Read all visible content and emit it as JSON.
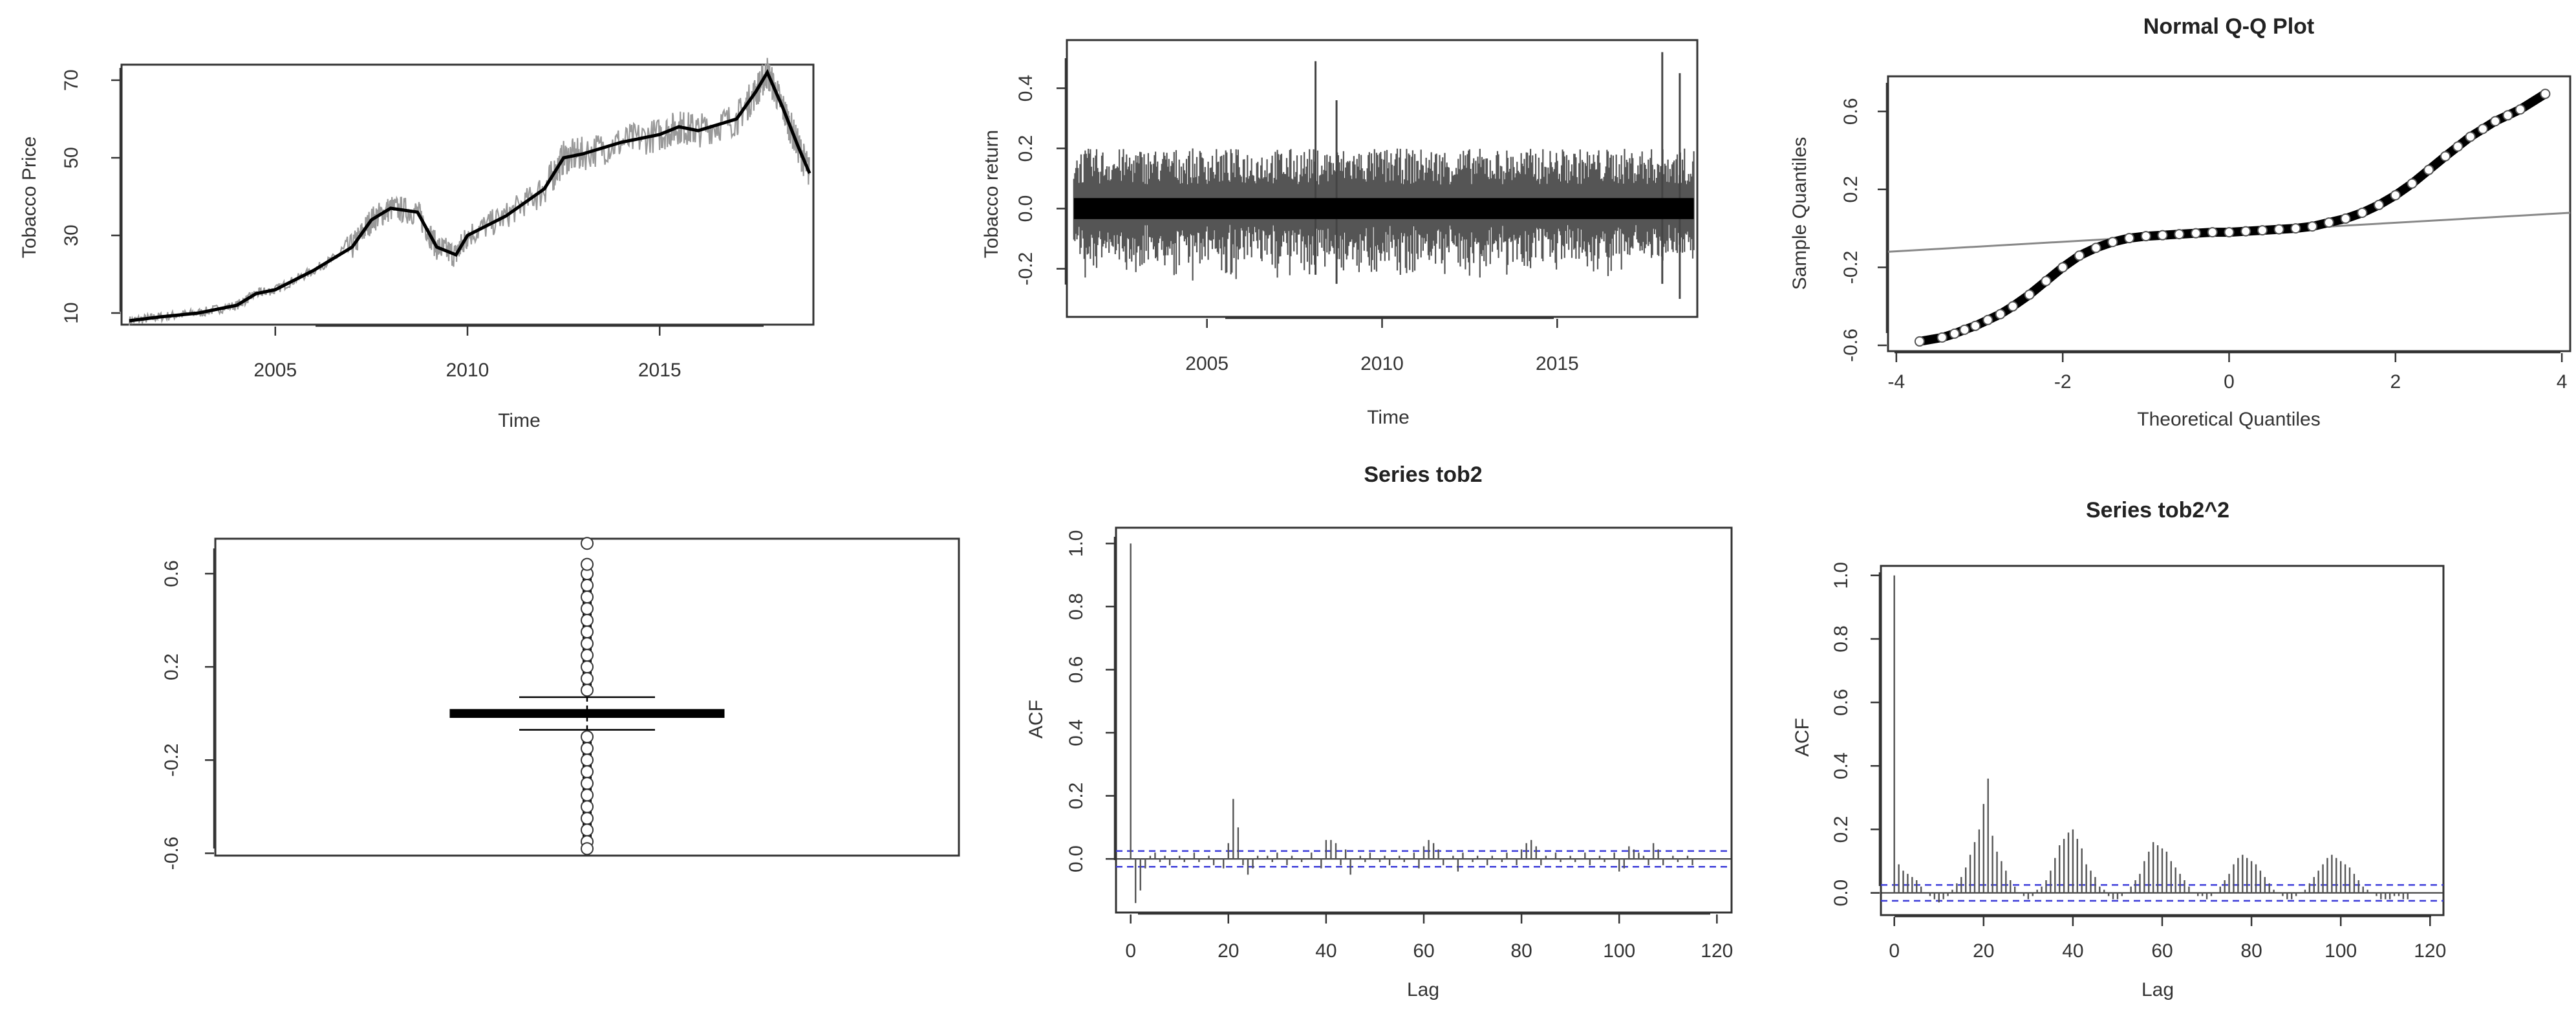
{
  "chart_data": [
    {
      "type": "line",
      "title": "",
      "xlabel": "Time",
      "ylabel": "Tobacco Price",
      "xlim": [
        2001,
        2019
      ],
      "ylim": [
        7,
        74
      ],
      "x_ticks": [
        2005,
        2010,
        2015
      ],
      "y_ticks": [
        10,
        30,
        50,
        70
      ],
      "series": [
        {
          "x": [
            2001.2,
            2002.0,
            2003.0,
            2004.0,
            2004.5,
            2005.0,
            2006.0,
            2007.0,
            2007.5,
            2008.0,
            2008.7,
            2009.2,
            2009.7,
            2010.0,
            2011.0,
            2012.0,
            2012.5,
            2013.0,
            2014.0,
            2015.0,
            2015.5,
            2016.0,
            2017.0,
            2017.5,
            2017.8,
            2018.2,
            2018.6,
            2018.9
          ],
          "values": [
            8,
            9,
            10,
            12,
            15,
            16,
            21,
            27,
            34,
            37,
            36,
            27,
            25,
            30,
            35,
            42,
            50,
            51,
            54,
            56,
            58,
            57,
            60,
            67,
            72,
            63,
            53,
            46
          ]
        }
      ]
    },
    {
      "type": "line",
      "title": "",
      "xlabel": "Time",
      "ylabel": "Tobacco return",
      "xlim": [
        2001,
        2019
      ],
      "ylim": [
        -0.36,
        0.56
      ],
      "x_ticks": [
        2005,
        2010,
        2015
      ],
      "y_ticks": [
        -0.2,
        0.0,
        0.2,
        0.4
      ],
      "y_tick_labels": [
        "-0.2",
        "0.0",
        "0.2",
        "0.4"
      ],
      "spikes": [
        {
          "x": 2008.1,
          "high": 0.49,
          "low": -0.22
        },
        {
          "x": 2008.7,
          "high": 0.36,
          "low": -0.25
        },
        {
          "x": 2018.0,
          "high": 0.52,
          "low": -0.25
        },
        {
          "x": 2018.5,
          "high": 0.45,
          "low": -0.3
        }
      ],
      "noise_amplitude": 0.2
    },
    {
      "type": "scatter",
      "title": "Normal Q-Q Plot",
      "xlabel": "Theoretical Quantiles",
      "ylabel": "Sample Quantiles",
      "xlim": [
        -4.1,
        4.1
      ],
      "ylim": [
        -0.63,
        0.78
      ],
      "x_ticks": [
        -4,
        -2,
        0,
        2,
        4
      ],
      "y_ticks": [
        -0.6,
        -0.2,
        0.2,
        0.6
      ],
      "y_tick_labels": [
        "-0.6",
        "-0.2",
        "0.2",
        "0.6"
      ],
      "reference_line": {
        "x": [
          -4.1,
          4.1
        ],
        "y": [
          -0.12,
          0.08
        ]
      },
      "points": {
        "x": [
          -3.72,
          -3.45,
          -3.3,
          -3.18,
          -3.05,
          -2.9,
          -2.75,
          -2.6,
          -2.4,
          -2.2,
          -2.0,
          -1.8,
          -1.6,
          -1.4,
          -1.2,
          -1.0,
          -0.8,
          -0.6,
          -0.4,
          -0.2,
          0.0,
          0.2,
          0.4,
          0.6,
          0.8,
          1.0,
          1.2,
          1.4,
          1.6,
          1.8,
          2.0,
          2.2,
          2.4,
          2.6,
          2.75,
          2.9,
          3.05,
          3.2,
          3.35,
          3.5,
          3.8
        ],
        "y": [
          -0.58,
          -0.56,
          -0.54,
          -0.52,
          -0.5,
          -0.47,
          -0.44,
          -0.4,
          -0.34,
          -0.27,
          -0.2,
          -0.14,
          -0.1,
          -0.07,
          -0.05,
          -0.04,
          -0.035,
          -0.03,
          -0.025,
          -0.02,
          -0.02,
          -0.015,
          -0.01,
          -0.005,
          0.0,
          0.01,
          0.03,
          0.05,
          0.08,
          0.12,
          0.17,
          0.23,
          0.3,
          0.37,
          0.42,
          0.47,
          0.51,
          0.55,
          0.58,
          0.61,
          0.69
        ]
      }
    },
    {
      "type": "box",
      "title": "",
      "ylim": [
        -0.61,
        0.75
      ],
      "y_ticks": [
        -0.6,
        -0.2,
        0.2,
        0.6
      ],
      "y_tick_labels": [
        "-0.6",
        "-0.2",
        "0.2",
        "0.6"
      ],
      "median": 0.0,
      "q1": -0.012,
      "q3": 0.012,
      "whisker_low": -0.07,
      "whisker_high": 0.07,
      "outliers_high": [
        0.1,
        0.15,
        0.2,
        0.25,
        0.3,
        0.35,
        0.4,
        0.45,
        0.5,
        0.55,
        0.6,
        0.64,
        0.73
      ],
      "outliers_low": [
        -0.1,
        -0.15,
        -0.2,
        -0.25,
        -0.3,
        -0.35,
        -0.4,
        -0.45,
        -0.5,
        -0.55,
        -0.58
      ]
    },
    {
      "type": "bar",
      "title": "Series  tob2",
      "xlabel": "Lag",
      "ylabel": "ACF",
      "xlim": [
        -3,
        123
      ],
      "ylim": [
        -0.17,
        1.05
      ],
      "x_ticks": [
        0,
        20,
        40,
        60,
        80,
        100,
        120
      ],
      "y_ticks": [
        0.0,
        0.2,
        0.4,
        0.6,
        0.8,
        1.0
      ],
      "y_tick_labels": [
        "0.0",
        "0.2",
        "0.4",
        "0.6",
        "0.8",
        "1.0"
      ],
      "conf_band": 0.025,
      "x": [
        0,
        1,
        2,
        3,
        4,
        5,
        6,
        7,
        8,
        9,
        10,
        11,
        12,
        13,
        14,
        15,
        16,
        17,
        18,
        19,
        20,
        21,
        22,
        23,
        24,
        25,
        26,
        27,
        28,
        29,
        30,
        31,
        32,
        33,
        34,
        35,
        36,
        37,
        38,
        39,
        40,
        41,
        42,
        43,
        44,
        45,
        46,
        47,
        48,
        49,
        50,
        51,
        52,
        53,
        54,
        55,
        56,
        57,
        58,
        59,
        60,
        61,
        62,
        63,
        64,
        65,
        66,
        67,
        68,
        69,
        70,
        71,
        72,
        73,
        74,
        75,
        76,
        77,
        78,
        79,
        80,
        81,
        82,
        83,
        84,
        85,
        86,
        87,
        88,
        89,
        90,
        91,
        92,
        93,
        94,
        95,
        96,
        97,
        98,
        99,
        100,
        101,
        102,
        103,
        104,
        105,
        106,
        107,
        108,
        109,
        110,
        111,
        112,
        113,
        114,
        115
      ],
      "values": [
        1.0,
        -0.14,
        -0.1,
        -0.03,
        0.01,
        0.02,
        -0.01,
        0.01,
        -0.02,
        0.0,
        0.01,
        -0.01,
        0.0,
        0.02,
        -0.01,
        0.0,
        0.01,
        -0.02,
        0.0,
        -0.03,
        0.05,
        0.19,
        0.1,
        -0.02,
        -0.05,
        -0.03,
        0.01,
        0.0,
        0.01,
        -0.01,
        0.02,
        0.0,
        -0.02,
        0.01,
        0.0,
        -0.01,
        0.0,
        0.02,
        0.0,
        -0.03,
        0.06,
        0.06,
        0.05,
        -0.02,
        0.03,
        -0.05,
        0.0,
        0.01,
        -0.01,
        0.02,
        0.0,
        -0.01,
        0.01,
        -0.02,
        0.0,
        0.01,
        -0.01,
        0.0,
        0.02,
        -0.03,
        0.04,
        0.06,
        0.05,
        0.03,
        -0.02,
        0.0,
        0.01,
        -0.04,
        0.02,
        0.0,
        -0.01,
        0.01,
        0.0,
        -0.02,
        0.01,
        0.0,
        -0.01,
        0.02,
        0.0,
        -0.02,
        0.03,
        0.05,
        0.06,
        0.04,
        -0.02,
        0.01,
        0.0,
        0.02,
        -0.01,
        0.0,
        0.01,
        -0.01,
        0.0,
        0.02,
        -0.02,
        0.0,
        0.01,
        -0.01,
        0.0,
        0.02,
        -0.04,
        -0.03,
        0.04,
        0.03,
        0.02,
        0.01,
        -0.02,
        0.05,
        0.03,
        -0.02,
        0.0,
        0.01,
        -0.01,
        0.0,
        0.01,
        -0.02
      ]
    },
    {
      "type": "bar",
      "title": "Series  tob2^2",
      "xlabel": "Lag",
      "ylabel": "ACF",
      "xlim": [
        -3,
        123
      ],
      "ylim": [
        -0.07,
        1.03
      ],
      "x_ticks": [
        0,
        20,
        40,
        60,
        80,
        100,
        120
      ],
      "y_ticks": [
        0.0,
        0.2,
        0.4,
        0.6,
        0.8,
        1.0
      ],
      "y_tick_labels": [
        "0.0",
        "0.2",
        "0.4",
        "0.6",
        "0.8",
        "1.0"
      ],
      "conf_band": 0.025,
      "x": [
        0,
        1,
        2,
        3,
        4,
        5,
        6,
        7,
        8,
        9,
        10,
        11,
        12,
        13,
        14,
        15,
        16,
        17,
        18,
        19,
        20,
        21,
        22,
        23,
        24,
        25,
        26,
        27,
        28,
        29,
        30,
        31,
        32,
        33,
        34,
        35,
        36,
        37,
        38,
        39,
        40,
        41,
        42,
        43,
        44,
        45,
        46,
        47,
        48,
        49,
        50,
        51,
        52,
        53,
        54,
        55,
        56,
        57,
        58,
        59,
        60,
        61,
        62,
        63,
        64,
        65,
        66,
        67,
        68,
        69,
        70,
        71,
        72,
        73,
        74,
        75,
        76,
        77,
        78,
        79,
        80,
        81,
        82,
        83,
        84,
        85,
        86,
        87,
        88,
        89,
        90,
        91,
        92,
        93,
        94,
        95,
        96,
        97,
        98,
        99,
        100,
        101,
        102,
        103,
        104,
        105,
        106,
        107,
        108,
        109,
        110,
        111,
        112,
        113,
        114,
        115
      ],
      "values": [
        1.0,
        0.09,
        0.07,
        0.06,
        0.05,
        0.04,
        0.02,
        0.0,
        -0.01,
        -0.02,
        -0.03,
        -0.02,
        -0.01,
        0.01,
        0.03,
        0.05,
        0.08,
        0.12,
        0.16,
        0.2,
        0.28,
        0.36,
        0.18,
        0.13,
        0.1,
        0.07,
        0.04,
        0.02,
        0.0,
        -0.01,
        -0.02,
        -0.01,
        0.01,
        0.02,
        0.04,
        0.07,
        0.11,
        0.15,
        0.17,
        0.19,
        0.2,
        0.17,
        0.14,
        0.09,
        0.07,
        0.05,
        0.02,
        0.01,
        -0.01,
        -0.02,
        -0.02,
        -0.01,
        0.0,
        0.02,
        0.04,
        0.06,
        0.1,
        0.13,
        0.16,
        0.15,
        0.14,
        0.13,
        0.1,
        0.08,
        0.06,
        0.04,
        0.02,
        0.0,
        -0.01,
        -0.01,
        -0.02,
        -0.01,
        0.0,
        0.02,
        0.04,
        0.06,
        0.09,
        0.11,
        0.12,
        0.11,
        0.1,
        0.09,
        0.07,
        0.05,
        0.03,
        0.01,
        0.0,
        -0.01,
        -0.02,
        -0.02,
        -0.01,
        0.0,
        0.01,
        0.03,
        0.05,
        0.07,
        0.09,
        0.11,
        0.12,
        0.11,
        0.1,
        0.09,
        0.08,
        0.06,
        0.04,
        0.02,
        0.01,
        0.0,
        -0.01,
        -0.02,
        -0.02,
        -0.02,
        -0.01,
        -0.01,
        -0.02,
        -0.02
      ]
    }
  ]
}
